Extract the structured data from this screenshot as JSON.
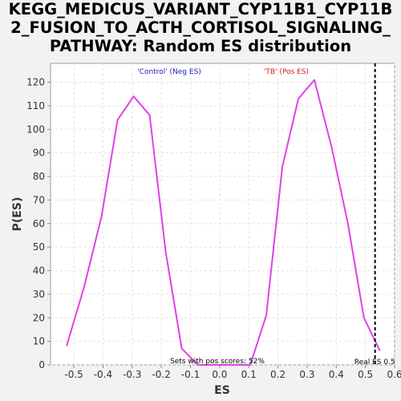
{
  "chart_data": {
    "type": "line",
    "title_lines": [
      "KEGG_MEDICUS_VARIANT_CYP11B1_CYP11B",
      "2_FUSION_TO_ACTH_CORTISOL_SIGNALING_",
      "PATHWAY: Random ES distribution"
    ],
    "xlabel": "ES",
    "ylabel": "P(ES)",
    "xlim": [
      -0.58,
      0.6
    ],
    "ylim": [
      0,
      128
    ],
    "x_ticks": [
      -0.5,
      -0.4,
      -0.3,
      -0.2,
      -0.1,
      0.0,
      0.1,
      0.2,
      0.3,
      0.4,
      0.5,
      0.6
    ],
    "x_tick_labels": [
      "-0.5",
      "-0.4",
      "-0.3",
      "-0.2",
      "-0.1",
      "0.0",
      "0.1",
      "0.2",
      "0.3",
      "0.4",
      "0.5",
      "0.6"
    ],
    "y_ticks": [
      0,
      10,
      20,
      30,
      40,
      50,
      60,
      70,
      80,
      90,
      100,
      110,
      120
    ],
    "y_tick_labels": [
      "0",
      "10",
      "20",
      "30",
      "40",
      "50",
      "60",
      "70",
      "80",
      "90",
      "100",
      "110",
      "120"
    ],
    "grid": true,
    "series": [
      {
        "color": "#e040e8",
        "x": [
          -0.525,
          -0.465,
          -0.405,
          -0.35,
          -0.295,
          -0.24,
          -0.185,
          -0.13,
          -0.075,
          -0.02,
          0.035,
          0.09,
          0.105,
          0.16,
          0.215,
          0.27,
          0.325,
          0.385,
          0.44,
          0.495,
          0.55
        ],
        "y": [
          8,
          33,
          63,
          104,
          114,
          106,
          48,
          7,
          0,
          0,
          0,
          0,
          0,
          21,
          84,
          113,
          121,
          92,
          60,
          20,
          6
        ]
      }
    ],
    "reference_line": {
      "x": 0.533,
      "label": "Real ES 0.5",
      "style": "dashed",
      "color": "#000000"
    },
    "annotations": {
      "neg_label": "'Control' (Neg ES)",
      "neg_color": "#2020c0",
      "pos_label": "'TB' (Pos ES)",
      "pos_color": "#d02020",
      "pos_scores_label": "Sets with pos scores: 52%"
    }
  }
}
